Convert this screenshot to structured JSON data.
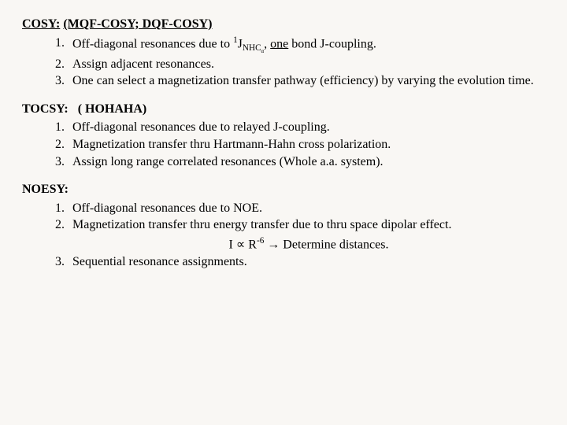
{
  "cosy": {
    "title_a": "COSY:",
    "title_b": "(MQF-COSY; DQF-COSY)",
    "items": [
      {
        "n": "1.",
        "pre": "Off-diagonal resonances due to ",
        "j_sup": "1",
        "j_base": "J",
        "j_sub_main": "NHC",
        "j_sub_greek": "α",
        "comma": ", ",
        "one": "one",
        "post": " bond J-coupling."
      },
      {
        "n": "2.",
        "text": "Assign adjacent resonances."
      },
      {
        "n": "3.",
        "text": "One can select a magnetization transfer pathway (efficiency) by varying the evolution time."
      }
    ]
  },
  "tocsy": {
    "title_a": "TOCSY:",
    "title_b": "( HOHAHA)",
    "items": [
      {
        "n": "1.",
        "text": "Off-diagonal resonances due to relayed J-coupling."
      },
      {
        "n": "2.",
        "text": "Magnetization transfer thru Hartmann-Hahn cross polarization."
      },
      {
        "n": "3.",
        "text": "Assign long range correlated resonances (Whole a.a. system)."
      }
    ]
  },
  "noesy": {
    "title": "NOESY:",
    "items": [
      {
        "n": "1.",
        "text": "Off-diagonal resonances due to NOE."
      },
      {
        "n": "2.",
        "text": "Magnetization transfer thru energy transfer due to thru space dipolar effect."
      },
      {
        "n": "3.",
        "text": "Sequential resonance assignments."
      }
    ],
    "formula": {
      "i": "I ",
      "prop": "∝",
      "r": " R",
      "exp": "-6",
      "arrow": "   →  ",
      "det": "Determine distances."
    }
  },
  "style": {
    "bg": "#f9f7f4",
    "font": "Comic Sans MS",
    "title_size_pt": 16,
    "body_size_pt": 16
  }
}
